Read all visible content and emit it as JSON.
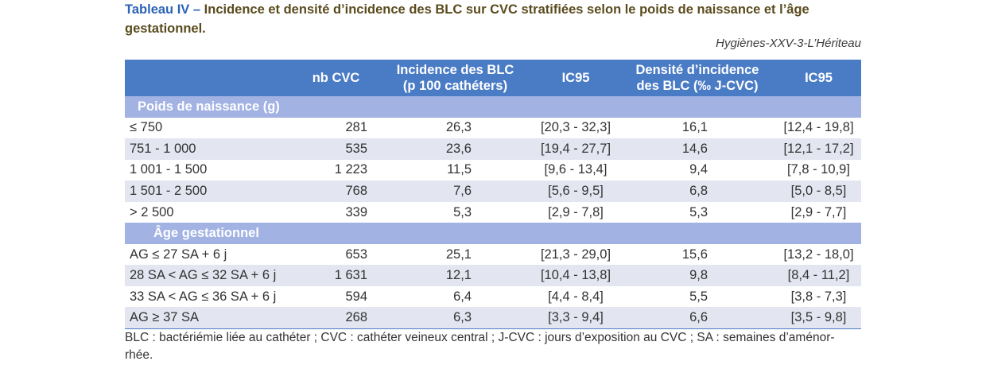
{
  "title": {
    "label": "Tableau IV –",
    "text": "Incidence et densité d’incidence des BLC sur CVC stratifiées selon le poids de naissance et l’âge gestationnel."
  },
  "source": "Hygiènes-XXV-3-L’Hériteau",
  "table": {
    "columns": [
      {
        "lines": []
      },
      {
        "lines": [
          "nb CVC"
        ]
      },
      {
        "lines": [
          "Incidence des BLC",
          "(p 100 cathéters)"
        ]
      },
      {
        "lines": [
          "IC95"
        ]
      },
      {
        "lines": [
          "Densité d’incidence",
          "des BLC (‰ J-CVC)"
        ]
      },
      {
        "lines": [
          "IC95"
        ]
      }
    ],
    "sections": [
      {
        "label": "Poids de naissance (g)",
        "rows": [
          [
            "≤ 750",
            "281",
            "26,3",
            "[20,3 - 32,3]",
            "16,1",
            "[12,4 - 19,8]"
          ],
          [
            "751 - 1 000",
            "535",
            "23,6",
            "[19,4 - 27,7]",
            "14,6",
            "[12,1 - 17,2]"
          ],
          [
            "1 001 - 1 500",
            "1 223",
            "11,5",
            "[9,6 - 13,4]",
            "9,4",
            "[7,8 - 10,9]"
          ],
          [
            "1 501 - 2 500",
            "768",
            "7,6",
            "[5,6 - 9,5]",
            "6,8",
            "[5,0 - 8,5]"
          ],
          [
            "> 2 500",
            "339",
            "5,3",
            "[2,9 - 7,8]",
            "5,3",
            "[2,9 - 7,7]"
          ]
        ]
      },
      {
        "label": "Âge gestationnel",
        "rows": [
          [
            "AG ≤ 27 SA + 6 j",
            "653",
            "25,1",
            "[21,3 - 29,0]",
            "15,6",
            "[13,2 - 18,0]"
          ],
          [
            "28 SA < AG ≤ 32 SA + 6 j",
            "1 631",
            "12,1",
            "[10,4 - 13,8]",
            "9,8",
            "[8,4 - 11,2]"
          ],
          [
            "33 SA < AG ≤ 36 SA + 6 j",
            "594",
            "6,4",
            "[4,4 - 8,4]",
            "5,5",
            "[3,8 - 7,3]"
          ],
          [
            "AG ≥ 37 SA",
            "268",
            "6,3",
            "[3,3 - 9,4]",
            "6,6",
            "[3,5 - 9,8]"
          ]
        ]
      }
    ]
  },
  "footnote": [
    "BLC : bactériémie liée au cathéter ; CVC : cathéter veineux central ; J-CVC : jours d’exposition au CVC ; SA : semaines d’aménor-",
    "rhée."
  ],
  "colors": {
    "header_bg": "#4a7bc5",
    "section_bg": "#a1b2e3",
    "shaded_row": "#e3e6f1",
    "title_label": "#2b63b5",
    "title_text": "#5a4b1e",
    "body_text": "#333333"
  }
}
